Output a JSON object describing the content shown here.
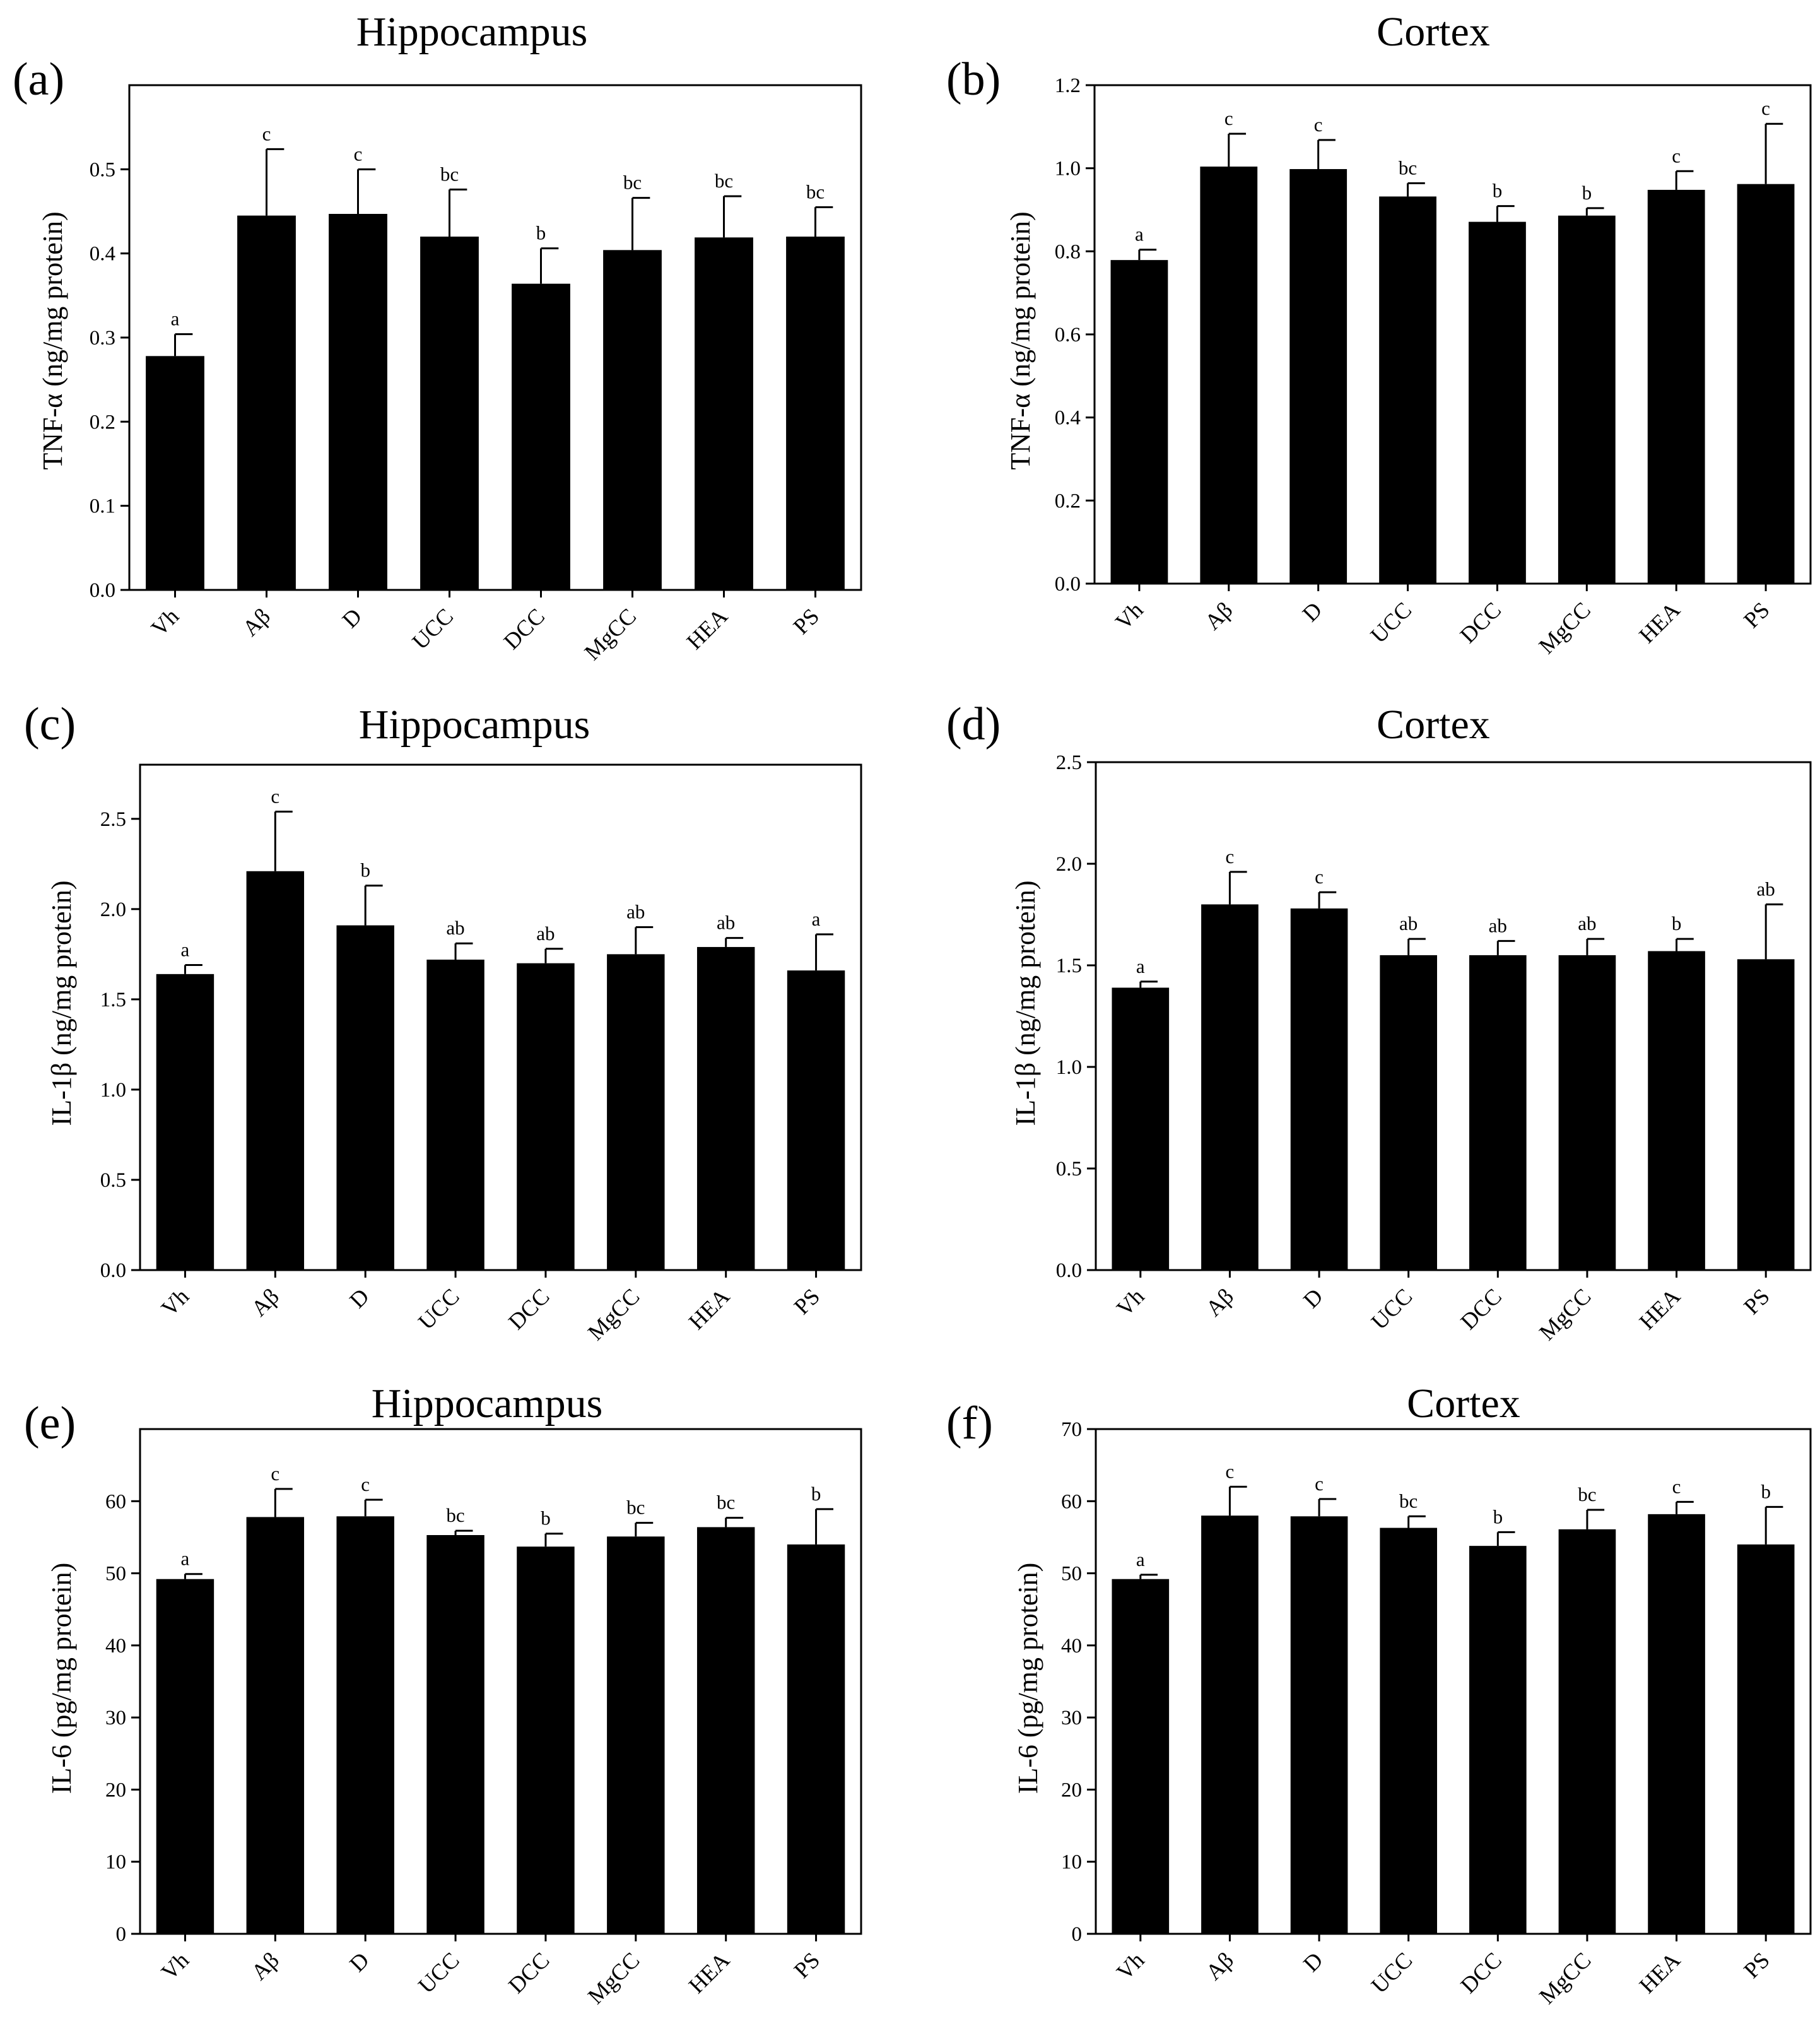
{
  "colors": {
    "bar": "#000000",
    "axis": "#000000",
    "background": "#ffffff"
  },
  "chart_data": [
    {
      "panel_label": "(a)",
      "title": "Hippocampus",
      "type": "bar",
      "ylabel": "TNF-α (ng/mg protein)",
      "xlabel": "",
      "categories": [
        "Vh",
        "Aβ",
        "D",
        "UCC",
        "DCC",
        "MgCC",
        "HEA",
        "PS"
      ],
      "values": [
        0.278,
        0.445,
        0.447,
        0.42,
        0.364,
        0.404,
        0.419,
        0.42
      ],
      "errors": [
        0.026,
        0.079,
        0.053,
        0.056,
        0.042,
        0.062,
        0.049,
        0.035
      ],
      "significance": [
        "a",
        "c",
        "c",
        "bc",
        "b",
        "bc",
        "bc",
        "bc"
      ],
      "ylim": [
        0,
        0.6
      ],
      "yticks": [
        0.0,
        0.1,
        0.2,
        0.3,
        0.4,
        0.5
      ],
      "ytick_labels": [
        "0.0",
        "0.1",
        "0.2",
        "0.3",
        "0.4",
        "0.5"
      ]
    },
    {
      "panel_label": "(b)",
      "title": "Cortex",
      "type": "bar",
      "ylabel": "TNF-α (ng/mg protein)",
      "xlabel": "",
      "categories": [
        "Vh",
        "Aβ",
        "D",
        "UCC",
        "DCC",
        "MgCC",
        "HEA",
        "PS"
      ],
      "values": [
        0.779,
        1.004,
        0.998,
        0.932,
        0.871,
        0.886,
        0.948,
        0.962
      ],
      "errors": [
        0.025,
        0.079,
        0.07,
        0.032,
        0.038,
        0.018,
        0.045,
        0.145
      ],
      "significance": [
        "a",
        "c",
        "c",
        "bc",
        "b",
        "b",
        "c",
        "c"
      ],
      "ylim": [
        0,
        1.2
      ],
      "yticks": [
        0.0,
        0.2,
        0.4,
        0.6,
        0.8,
        1.0,
        1.2
      ],
      "ytick_labels": [
        "0.0",
        "0.2",
        "0.4",
        "0.6",
        "0.8",
        "1.0",
        "1.2"
      ]
    },
    {
      "panel_label": "(c)",
      "title": "Hippocampus",
      "type": "bar",
      "ylabel": "IL-1β (ng/mg protein)",
      "xlabel": "",
      "categories": [
        "Vh",
        "Aβ",
        "D",
        "UCC",
        "DCC",
        "MgCC",
        "HEA",
        "PS"
      ],
      "values": [
        1.64,
        2.21,
        1.91,
        1.72,
        1.7,
        1.75,
        1.79,
        1.66
      ],
      "errors": [
        0.05,
        0.33,
        0.22,
        0.09,
        0.08,
        0.15,
        0.05,
        0.2
      ],
      "significance": [
        "a",
        "c",
        "b",
        "ab",
        "ab",
        "ab",
        "ab",
        "a"
      ],
      "ylim": [
        0,
        2.8
      ],
      "yticks": [
        0.0,
        0.5,
        1.0,
        1.5,
        2.0,
        2.5
      ],
      "ytick_labels": [
        "0.0",
        "0.5",
        "1.0",
        "1.5",
        "2.0",
        "2.5"
      ]
    },
    {
      "panel_label": "(d)",
      "title": "Cortex",
      "type": "bar",
      "ylabel": "IL-1β (ng/mg protein)",
      "xlabel": "",
      "categories": [
        "Vh",
        "Aβ",
        "D",
        "UCC",
        "DCC",
        "MgCC",
        "HEA",
        "PS"
      ],
      "values": [
        1.39,
        1.8,
        1.78,
        1.55,
        1.55,
        1.55,
        1.57,
        1.53
      ],
      "errors": [
        0.03,
        0.16,
        0.08,
        0.08,
        0.07,
        0.08,
        0.06,
        0.27
      ],
      "significance": [
        "a",
        "c",
        "c",
        "ab",
        "ab",
        "ab",
        "b",
        "ab"
      ],
      "ylim": [
        0,
        2.5
      ],
      "yticks": [
        0.0,
        0.5,
        1.0,
        1.5,
        2.0,
        2.5
      ],
      "ytick_labels": [
        "0.0",
        "0.5",
        "1.0",
        "1.5",
        "2.0",
        "2.5"
      ]
    },
    {
      "panel_label": "(e)",
      "title": "Hippocampus",
      "type": "bar",
      "ylabel": "IL-6 (pg/mg protein)",
      "xlabel": "",
      "categories": [
        "Vh",
        "Aβ",
        "D",
        "UCC",
        "DCC",
        "MgCC",
        "HEA",
        "PS"
      ],
      "values": [
        49.2,
        57.8,
        57.9,
        55.3,
        53.7,
        55.1,
        56.4,
        54.0
      ],
      "errors": [
        0.7,
        3.9,
        2.3,
        0.6,
        1.8,
        1.9,
        1.3,
        4.9
      ],
      "significance": [
        "a",
        "c",
        "c",
        "bc",
        "b",
        "bc",
        "bc",
        "b"
      ],
      "ylim": [
        0,
        70
      ],
      "yticks": [
        0,
        10,
        20,
        30,
        40,
        50,
        60
      ],
      "ytick_labels": [
        "0",
        "10",
        "20",
        "30",
        "40",
        "50",
        "60"
      ]
    },
    {
      "panel_label": "(f)",
      "title": "Cortex",
      "type": "bar",
      "ylabel": "IL-6 (pg/mg protein)",
      "xlabel": "",
      "categories": [
        "Vh",
        "Aβ",
        "D",
        "UCC",
        "DCC",
        "MgCC",
        "HEA",
        "PS"
      ],
      "values": [
        49.2,
        58.0,
        57.9,
        56.3,
        53.8,
        56.1,
        58.2,
        54.0
      ],
      "errors": [
        0.6,
        4.0,
        2.4,
        1.6,
        1.9,
        2.7,
        1.7,
        5.2
      ],
      "significance": [
        "a",
        "c",
        "c",
        "bc",
        "b",
        "bc",
        "c",
        "b"
      ],
      "ylim": [
        0,
        70
      ],
      "yticks": [
        0,
        10,
        20,
        30,
        40,
        50,
        60,
        70
      ],
      "ytick_labels": [
        "0",
        "10",
        "20",
        "30",
        "40",
        "50",
        "60",
        "70"
      ]
    }
  ]
}
